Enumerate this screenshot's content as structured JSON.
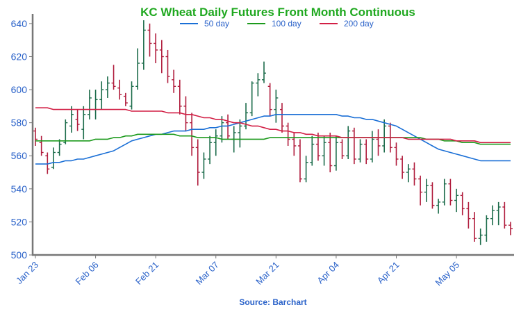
{
  "chart_data": {
    "type": "candlestick-ohlc",
    "title": "KC Wheat Daily Futures Front Month Continuous",
    "source": "Source: Barchart",
    "ylim": [
      500,
      645
    ],
    "yticks": [
      500,
      520,
      540,
      560,
      580,
      600,
      620,
      640
    ],
    "x_ticks": [
      {
        "index": 0,
        "label": "Jan 23"
      },
      {
        "index": 10,
        "label": "Feb 06"
      },
      {
        "index": 20,
        "label": "Feb 21"
      },
      {
        "index": 30,
        "label": "Mar 07"
      },
      {
        "index": 40,
        "label": "Mar 21"
      },
      {
        "index": 50,
        "label": "Apr 04"
      },
      {
        "index": 60,
        "label": "Apr 21"
      },
      {
        "index": 70,
        "label": "May 05"
      }
    ],
    "n_bars": 80,
    "colors": {
      "title": "#1fa81f",
      "up": "#1b6b4a",
      "down": "#b01c3c",
      "ma50": "#1a6fd6",
      "ma100": "#1c9a1c",
      "ma200": "#d21f45",
      "tick_label": "#2a62c9",
      "axis": "#777777",
      "source": "#2a62c9"
    },
    "legend": [
      {
        "name": "50 day",
        "color": "#1a6fd6"
      },
      {
        "name": "100 day",
        "color": "#1c9a1c"
      },
      {
        "name": "200 day",
        "color": "#d21f45"
      }
    ],
    "ohlc": [
      [
        575,
        577,
        566,
        570
      ],
      [
        568,
        572,
        560,
        562
      ],
      [
        560,
        562,
        549,
        552
      ],
      [
        553,
        565,
        552,
        562
      ],
      [
        562,
        570,
        560,
        567
      ],
      [
        568,
        582,
        567,
        580
      ],
      [
        578,
        590,
        574,
        585
      ],
      [
        582,
        588,
        575,
        579
      ],
      [
        576,
        590,
        570,
        585
      ],
      [
        585,
        600,
        582,
        595
      ],
      [
        588,
        600,
        582,
        594
      ],
      [
        594,
        605,
        588,
        600
      ],
      [
        600,
        608,
        595,
        604
      ],
      [
        604,
        615,
        600,
        602
      ],
      [
        601,
        606,
        594,
        597
      ],
      [
        596,
        598,
        590,
        592
      ],
      [
        590,
        605,
        588,
        602
      ],
      [
        602,
        625,
        600,
        616
      ],
      [
        616,
        642,
        612,
        636
      ],
      [
        636,
        640,
        620,
        628
      ],
      [
        628,
        634,
        616,
        624
      ],
      [
        624,
        630,
        610,
        620
      ],
      [
        620,
        624,
        604,
        608
      ],
      [
        606,
        612,
        598,
        602
      ],
      [
        602,
        606,
        585,
        590
      ],
      [
        590,
        596,
        575,
        580
      ],
      [
        580,
        586,
        560,
        565
      ],
      [
        565,
        570,
        542,
        550
      ],
      [
        550,
        562,
        546,
        558
      ],
      [
        558,
        572,
        555,
        568
      ],
      [
        568,
        576,
        560,
        572
      ],
      [
        572,
        584,
        568,
        580
      ],
      [
        580,
        585,
        570,
        572
      ],
      [
        570,
        578,
        562,
        574
      ],
      [
        574,
        582,
        565,
        578
      ],
      [
        578,
        592,
        576,
        586
      ],
      [
        586,
        605,
        584,
        604
      ],
      [
        604,
        610,
        596,
        606
      ],
      [
        606,
        617,
        604,
        610
      ],
      [
        602,
        604,
        584,
        588
      ],
      [
        588,
        600,
        580,
        595
      ],
      [
        588,
        592,
        574,
        578
      ],
      [
        578,
        580,
        566,
        570
      ],
      [
        570,
        574,
        560,
        566
      ],
      [
        566,
        570,
        544,
        546
      ],
      [
        546,
        560,
        544,
        556
      ],
      [
        556,
        572,
        554,
        567
      ],
      [
        567,
        574,
        557,
        560
      ],
      [
        560,
        572,
        554,
        568
      ],
      [
        568,
        574,
        550,
        554
      ],
      [
        554,
        572,
        551,
        568
      ],
      [
        568,
        570,
        558,
        560
      ],
      [
        560,
        578,
        558,
        575
      ],
      [
        575,
        577,
        555,
        558
      ],
      [
        558,
        570,
        556,
        567
      ],
      [
        567,
        570,
        555,
        558
      ],
      [
        558,
        575,
        556,
        570
      ],
      [
        570,
        576,
        560,
        566
      ],
      [
        566,
        582,
        562,
        578
      ],
      [
        578,
        580,
        562,
        565
      ],
      [
        565,
        568,
        554,
        558
      ],
      [
        558,
        560,
        546,
        550
      ],
      [
        550,
        555,
        544,
        552
      ],
      [
        552,
        556,
        542,
        546
      ],
      [
        546,
        548,
        530,
        538
      ],
      [
        538,
        546,
        532,
        542
      ],
      [
        542,
        544,
        528,
        530
      ],
      [
        530,
        534,
        525,
        532
      ],
      [
        532,
        546,
        530,
        543
      ],
      [
        543,
        546,
        530,
        533
      ],
      [
        533,
        540,
        526,
        536
      ],
      [
        536,
        538,
        524,
        528
      ],
      [
        528,
        532,
        516,
        522
      ],
      [
        522,
        526,
        508,
        510
      ],
      [
        510,
        516,
        506,
        512
      ],
      [
        512,
        524,
        508,
        522
      ],
      [
        522,
        530,
        518,
        527
      ],
      [
        527,
        532,
        518,
        529
      ],
      [
        529,
        532,
        516,
        518
      ],
      [
        518,
        520,
        512,
        516
      ]
    ],
    "series": [
      {
        "name": "50 day",
        "values": [
          555,
          555,
          555,
          556,
          556,
          557,
          557,
          558,
          558,
          559,
          560,
          561,
          562,
          563,
          565,
          567,
          569,
          570,
          571,
          572,
          573,
          573,
          574,
          575,
          575,
          575,
          576,
          576,
          576,
          577,
          577,
          578,
          578,
          579,
          580,
          581,
          582,
          583,
          584,
          584,
          585,
          585,
          585,
          585,
          585,
          585,
          585,
          585,
          585,
          585,
          585,
          584,
          584,
          583,
          583,
          582,
          582,
          581,
          580,
          579,
          578,
          576,
          574,
          572,
          570,
          568,
          566,
          564,
          563,
          562,
          561,
          560,
          559,
          558,
          557,
          557,
          557,
          557,
          557,
          557
        ]
      },
      {
        "name": "100 day",
        "values": [
          569,
          569,
          569,
          569,
          569,
          569,
          569,
          569,
          569,
          569,
          570,
          570,
          570,
          571,
          571,
          572,
          572,
          573,
          573,
          573,
          573,
          573,
          573,
          573,
          572,
          572,
          572,
          571,
          571,
          571,
          571,
          570,
          570,
          570,
          570,
          570,
          570,
          570,
          570,
          571,
          571,
          571,
          571,
          571,
          571,
          571,
          571,
          571,
          571,
          571,
          571,
          571,
          571,
          571,
          571,
          571,
          571,
          571,
          571,
          571,
          571,
          571,
          571,
          571,
          571,
          570,
          570,
          570,
          569,
          569,
          569,
          568,
          568,
          568,
          567,
          567,
          567,
          567,
          567,
          567
        ]
      },
      {
        "name": "200 day",
        "values": [
          589,
          589,
          589,
          588,
          588,
          588,
          588,
          588,
          588,
          588,
          588,
          588,
          588,
          588,
          588,
          588,
          587,
          587,
          587,
          587,
          587,
          587,
          586,
          586,
          586,
          585,
          585,
          584,
          583,
          583,
          582,
          582,
          581,
          580,
          580,
          579,
          578,
          578,
          577,
          576,
          576,
          575,
          575,
          574,
          574,
          573,
          573,
          572,
          572,
          572,
          572,
          571,
          571,
          571,
          571,
          571,
          571,
          571,
          571,
          571,
          571,
          571,
          570,
          570,
          570,
          570,
          570,
          570,
          570,
          570,
          569,
          569,
          569,
          569,
          568,
          568,
          568,
          568,
          568,
          568
        ]
      }
    ]
  }
}
